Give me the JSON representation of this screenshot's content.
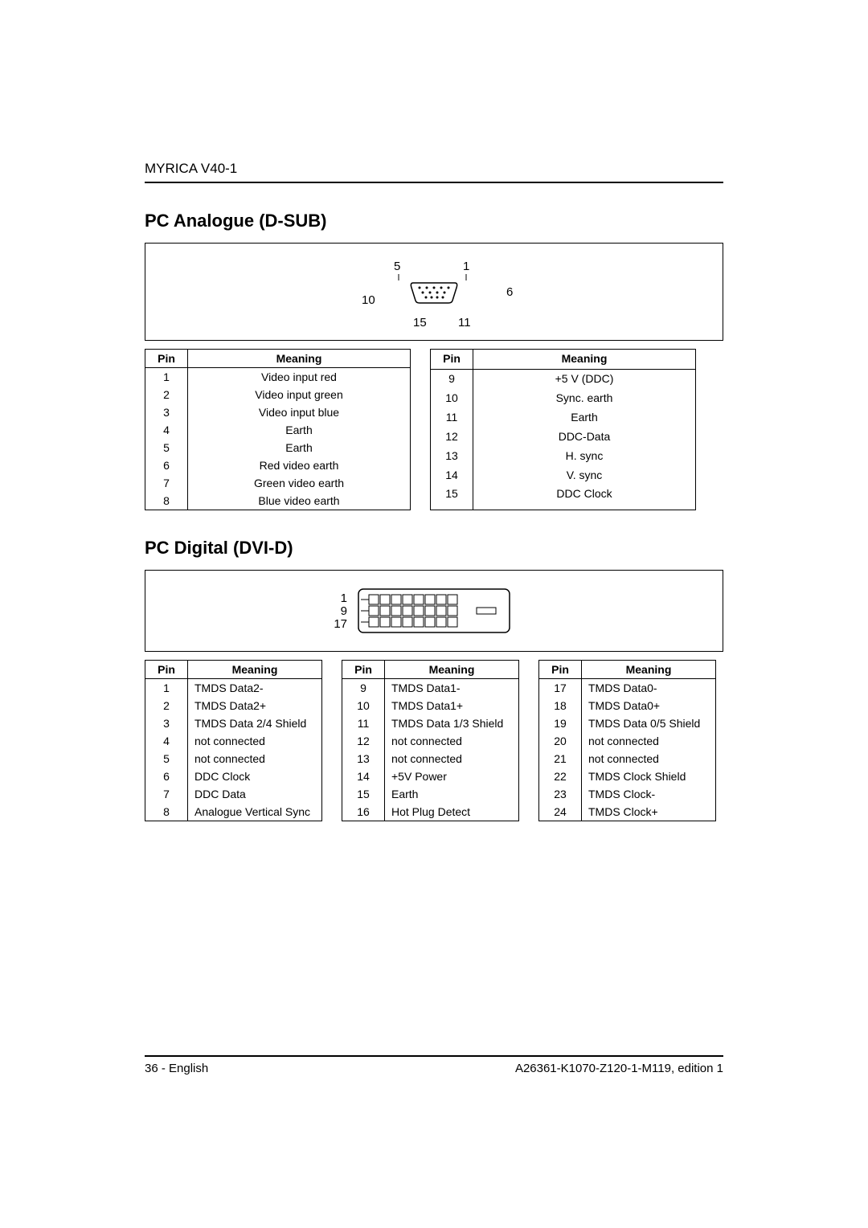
{
  "header": {
    "product": "MYRICA V40-1"
  },
  "sections": {
    "dsub": {
      "title": "PC Analogue (D-SUB)",
      "labels": {
        "tl": "5",
        "tr": "1",
        "r": "6",
        "bl": "10",
        "bc": "15",
        "br": "11"
      },
      "tableHeaders": {
        "pin": "Pin",
        "meaning": "Meaning"
      },
      "left": [
        {
          "pin": "1",
          "meaning": "Video input red"
        },
        {
          "pin": "2",
          "meaning": "Video input green"
        },
        {
          "pin": "3",
          "meaning": "Video input blue"
        },
        {
          "pin": "4",
          "meaning": "Earth"
        },
        {
          "pin": "5",
          "meaning": "Earth"
        },
        {
          "pin": "6",
          "meaning": "Red video earth"
        },
        {
          "pin": "7",
          "meaning": "Green video earth"
        },
        {
          "pin": "8",
          "meaning": "Blue video earth"
        }
      ],
      "right": [
        {
          "pin": "9",
          "meaning": "+5 V (DDC)"
        },
        {
          "pin": "10",
          "meaning": "Sync. earth"
        },
        {
          "pin": "11",
          "meaning": "Earth"
        },
        {
          "pin": "12",
          "meaning": "DDC-Data"
        },
        {
          "pin": "13",
          "meaning": "H. sync"
        },
        {
          "pin": "14",
          "meaning": "V. sync"
        },
        {
          "pin": "15",
          "meaning": "DDC Clock"
        },
        {
          "pin": "",
          "meaning": ""
        }
      ]
    },
    "dvi": {
      "title": "PC Digital (DVI-D)",
      "labels": {
        "r1": "1",
        "r2": "9",
        "r3": "17"
      },
      "tableHeaders": {
        "pin": "Pin",
        "meaning": "Meaning"
      },
      "col1": [
        {
          "pin": "1",
          "meaning": "TMDS Data2-"
        },
        {
          "pin": "2",
          "meaning": "TMDS Data2+"
        },
        {
          "pin": "3",
          "meaning": "TMDS Data 2/4 Shield"
        },
        {
          "pin": "4",
          "meaning": "not connected"
        },
        {
          "pin": "5",
          "meaning": "not connected"
        },
        {
          "pin": "6",
          "meaning": "DDC Clock"
        },
        {
          "pin": "7",
          "meaning": "DDC Data"
        },
        {
          "pin": "8",
          "meaning": "Analogue Vertical Sync"
        }
      ],
      "col2": [
        {
          "pin": "9",
          "meaning": "TMDS Data1-"
        },
        {
          "pin": "10",
          "meaning": "TMDS Data1+"
        },
        {
          "pin": "11",
          "meaning": "TMDS Data 1/3 Shield"
        },
        {
          "pin": "12",
          "meaning": "not connected"
        },
        {
          "pin": "13",
          "meaning": "not connected"
        },
        {
          "pin": "14",
          "meaning": "+5V Power"
        },
        {
          "pin": "15",
          "meaning": "Earth"
        },
        {
          "pin": "16",
          "meaning": "Hot Plug Detect"
        }
      ],
      "col3": [
        {
          "pin": "17",
          "meaning": "TMDS Data0-"
        },
        {
          "pin": "18",
          "meaning": "TMDS Data0+"
        },
        {
          "pin": "19",
          "meaning": "TMDS Data 0/5 Shield"
        },
        {
          "pin": "20",
          "meaning": "not connected"
        },
        {
          "pin": "21",
          "meaning": "not connected"
        },
        {
          "pin": "22",
          "meaning": "TMDS Clock Shield"
        },
        {
          "pin": "23",
          "meaning": "TMDS Clock-"
        },
        {
          "pin": "24",
          "meaning": "TMDS Clock+"
        }
      ]
    }
  },
  "footer": {
    "left": "36 - English",
    "right": "A26361-K1070-Z120-1-M119, edition 1"
  },
  "style": {
    "page_bg": "#ffffff",
    "text_color": "#000000",
    "border_color": "#000000",
    "body_fontsize": 14,
    "title_fontsize": 22
  }
}
